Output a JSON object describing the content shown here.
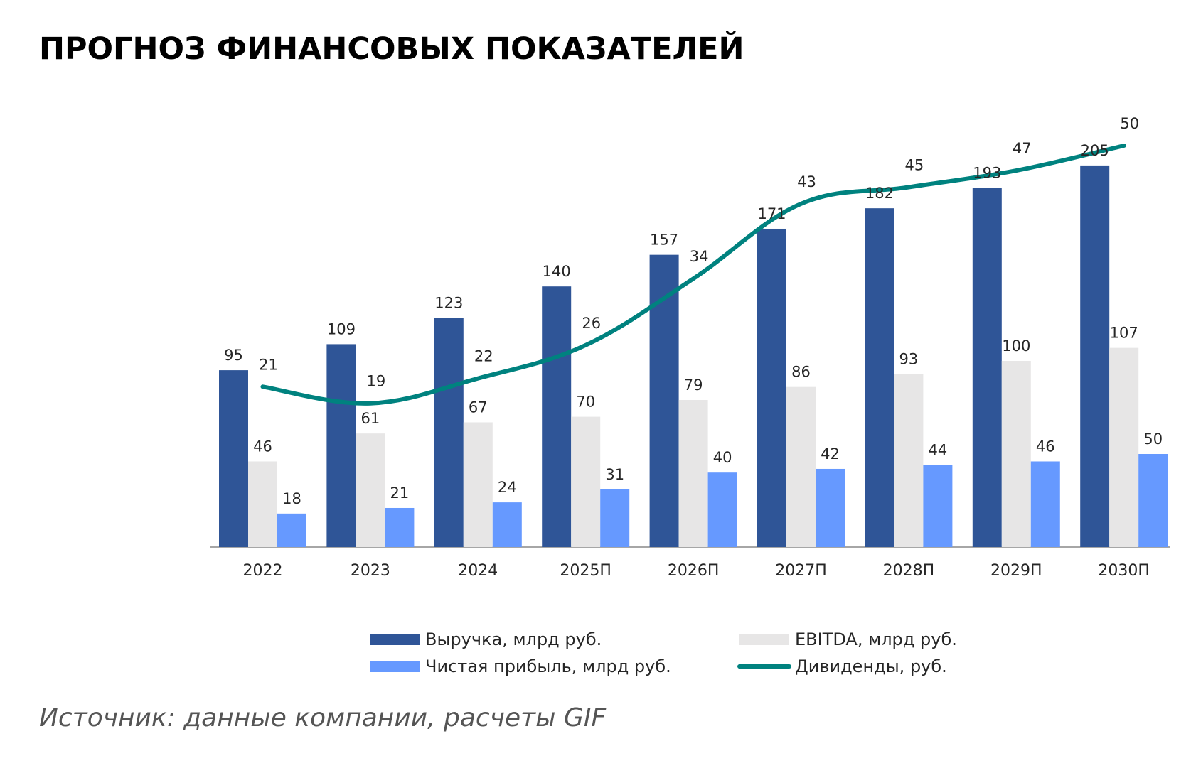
{
  "title": "ПРОГНОЗ ФИНАНСОВЫХ ПОКАЗАТЕЛЕЙ",
  "source": "Источник: данные компании, расчеты GIF",
  "chart_data": {
    "type": "bar",
    "categories": [
      "2022",
      "2023",
      "2024",
      "2025П",
      "2026П",
      "2027П",
      "2028П",
      "2029П",
      "2030П"
    ],
    "series": [
      {
        "name": "Выручка, млрд руб.",
        "type": "bar",
        "color": "#2f5597",
        "values": [
          95,
          109,
          123,
          140,
          157,
          171,
          182,
          193,
          205
        ]
      },
      {
        "name": "EBITDA, млрд руб.",
        "type": "bar",
        "color": "#e7e6e6",
        "values": [
          46,
          61,
          67,
          70,
          79,
          86,
          93,
          100,
          107
        ]
      },
      {
        "name": "Чистая прибыль, млрд руб.",
        "type": "bar",
        "color": "#6699ff",
        "values": [
          18,
          21,
          24,
          31,
          40,
          42,
          44,
          46,
          50
        ]
      },
      {
        "name": "Дивиденды, руб.",
        "type": "line",
        "color": "#00827f",
        "values": [
          21,
          19,
          22,
          26,
          34,
          43,
          45,
          47,
          50
        ]
      }
    ],
    "legend_position": "bottom",
    "grid": false
  }
}
